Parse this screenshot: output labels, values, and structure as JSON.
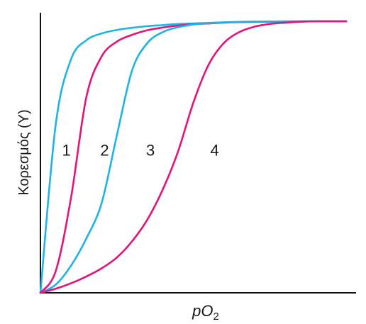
{
  "chart_data": {
    "type": "line",
    "title": "",
    "xlabel": "pO2",
    "xlabel_main": "pO",
    "xlabel_sub": "2",
    "ylabel": "Κορεσμός (Y)",
    "xlim": [
      0,
      1
    ],
    "ylim": [
      0,
      1
    ],
    "grid": false,
    "legend": "none",
    "x": [
      0,
      0.05,
      0.1,
      0.15,
      0.2,
      0.25,
      0.3,
      0.35,
      0.4,
      0.45,
      0.5,
      0.55,
      0.6,
      0.65,
      0.7,
      0.75,
      0.8,
      0.85,
      0.9,
      0.95,
      1.0
    ],
    "series": [
      {
        "label": "1",
        "color": "#1fb4e6",
        "values": [
          0.0,
          0.62,
          0.86,
          0.93,
          0.955,
          0.968,
          0.976,
          0.982,
          0.986,
          0.99,
          0.992,
          0.994,
          0.996,
          0.997,
          0.998,
          0.998,
          0.999,
          0.999,
          1.0,
          1.0,
          1.0
        ]
      },
      {
        "label": "2",
        "color": "#e5137a",
        "values": [
          0.0,
          0.08,
          0.35,
          0.72,
          0.87,
          0.925,
          0.95,
          0.967,
          0.977,
          0.984,
          0.989,
          0.992,
          0.995,
          0.997,
          0.998,
          0.999,
          0.999,
          1.0,
          1.0,
          1.0,
          1.0
        ]
      },
      {
        "label": "3",
        "color": "#1fb4e6",
        "values": [
          0.0,
          0.03,
          0.1,
          0.2,
          0.33,
          0.58,
          0.82,
          0.92,
          0.96,
          0.978,
          0.988,
          0.993,
          0.996,
          0.998,
          0.999,
          0.999,
          1.0,
          1.0,
          1.0,
          1.0,
          1.0
        ]
      },
      {
        "label": "4",
        "color": "#e5137a",
        "values": [
          0.0,
          0.015,
          0.035,
          0.06,
          0.09,
          0.13,
          0.19,
          0.27,
          0.38,
          0.52,
          0.7,
          0.84,
          0.92,
          0.96,
          0.98,
          0.99,
          0.995,
          0.998,
          1.0,
          1.0,
          1.0
        ]
      }
    ],
    "curve_labels": [
      {
        "text": "1",
        "x": 0.085,
        "y": 0.52
      },
      {
        "text": "2",
        "x": 0.21,
        "y": 0.52
      },
      {
        "text": "3",
        "x": 0.36,
        "y": 0.52
      },
      {
        "text": "4",
        "x": 0.57,
        "y": 0.52
      }
    ]
  }
}
